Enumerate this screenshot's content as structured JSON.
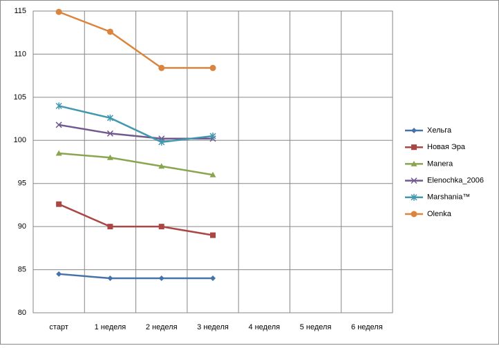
{
  "chart_data": {
    "type": "line",
    "categories": [
      "старт",
      "1 неделя",
      "2 неделя",
      "3 неделя",
      "4 неделя",
      "5 неделя",
      "6 неделя"
    ],
    "series": [
      {
        "name": "Хельга",
        "color": "#4572a7",
        "marker": "diamond",
        "values": [
          84.5,
          84,
          84,
          84,
          null,
          null,
          null
        ]
      },
      {
        "name": "Новая Эра",
        "color": "#aa4643",
        "marker": "square",
        "values": [
          92.6,
          90,
          90,
          89,
          null,
          null,
          null
        ]
      },
      {
        "name": "Manera",
        "color": "#89a54e",
        "marker": "triangle",
        "values": [
          98.5,
          98,
          97,
          96,
          null,
          null,
          null
        ]
      },
      {
        "name": "Elenochka_2006",
        "color": "#71588f",
        "marker": "x",
        "values": [
          101.8,
          100.8,
          100.2,
          100.2,
          null,
          null,
          null
        ]
      },
      {
        "name": "Marshania™",
        "color": "#4198af",
        "marker": "star",
        "values": [
          104,
          102.6,
          99.8,
          100.5,
          null,
          null,
          null
        ]
      },
      {
        "name": "Olenka",
        "color": "#db843d",
        "marker": "circle",
        "values": [
          114.9,
          112.6,
          108.4,
          108.4,
          null,
          null,
          null
        ]
      }
    ],
    "ylim": [
      80,
      115
    ],
    "yticks": [
      80,
      85,
      90,
      95,
      100,
      105,
      110,
      115
    ],
    "grid": true,
    "legend": "right"
  }
}
